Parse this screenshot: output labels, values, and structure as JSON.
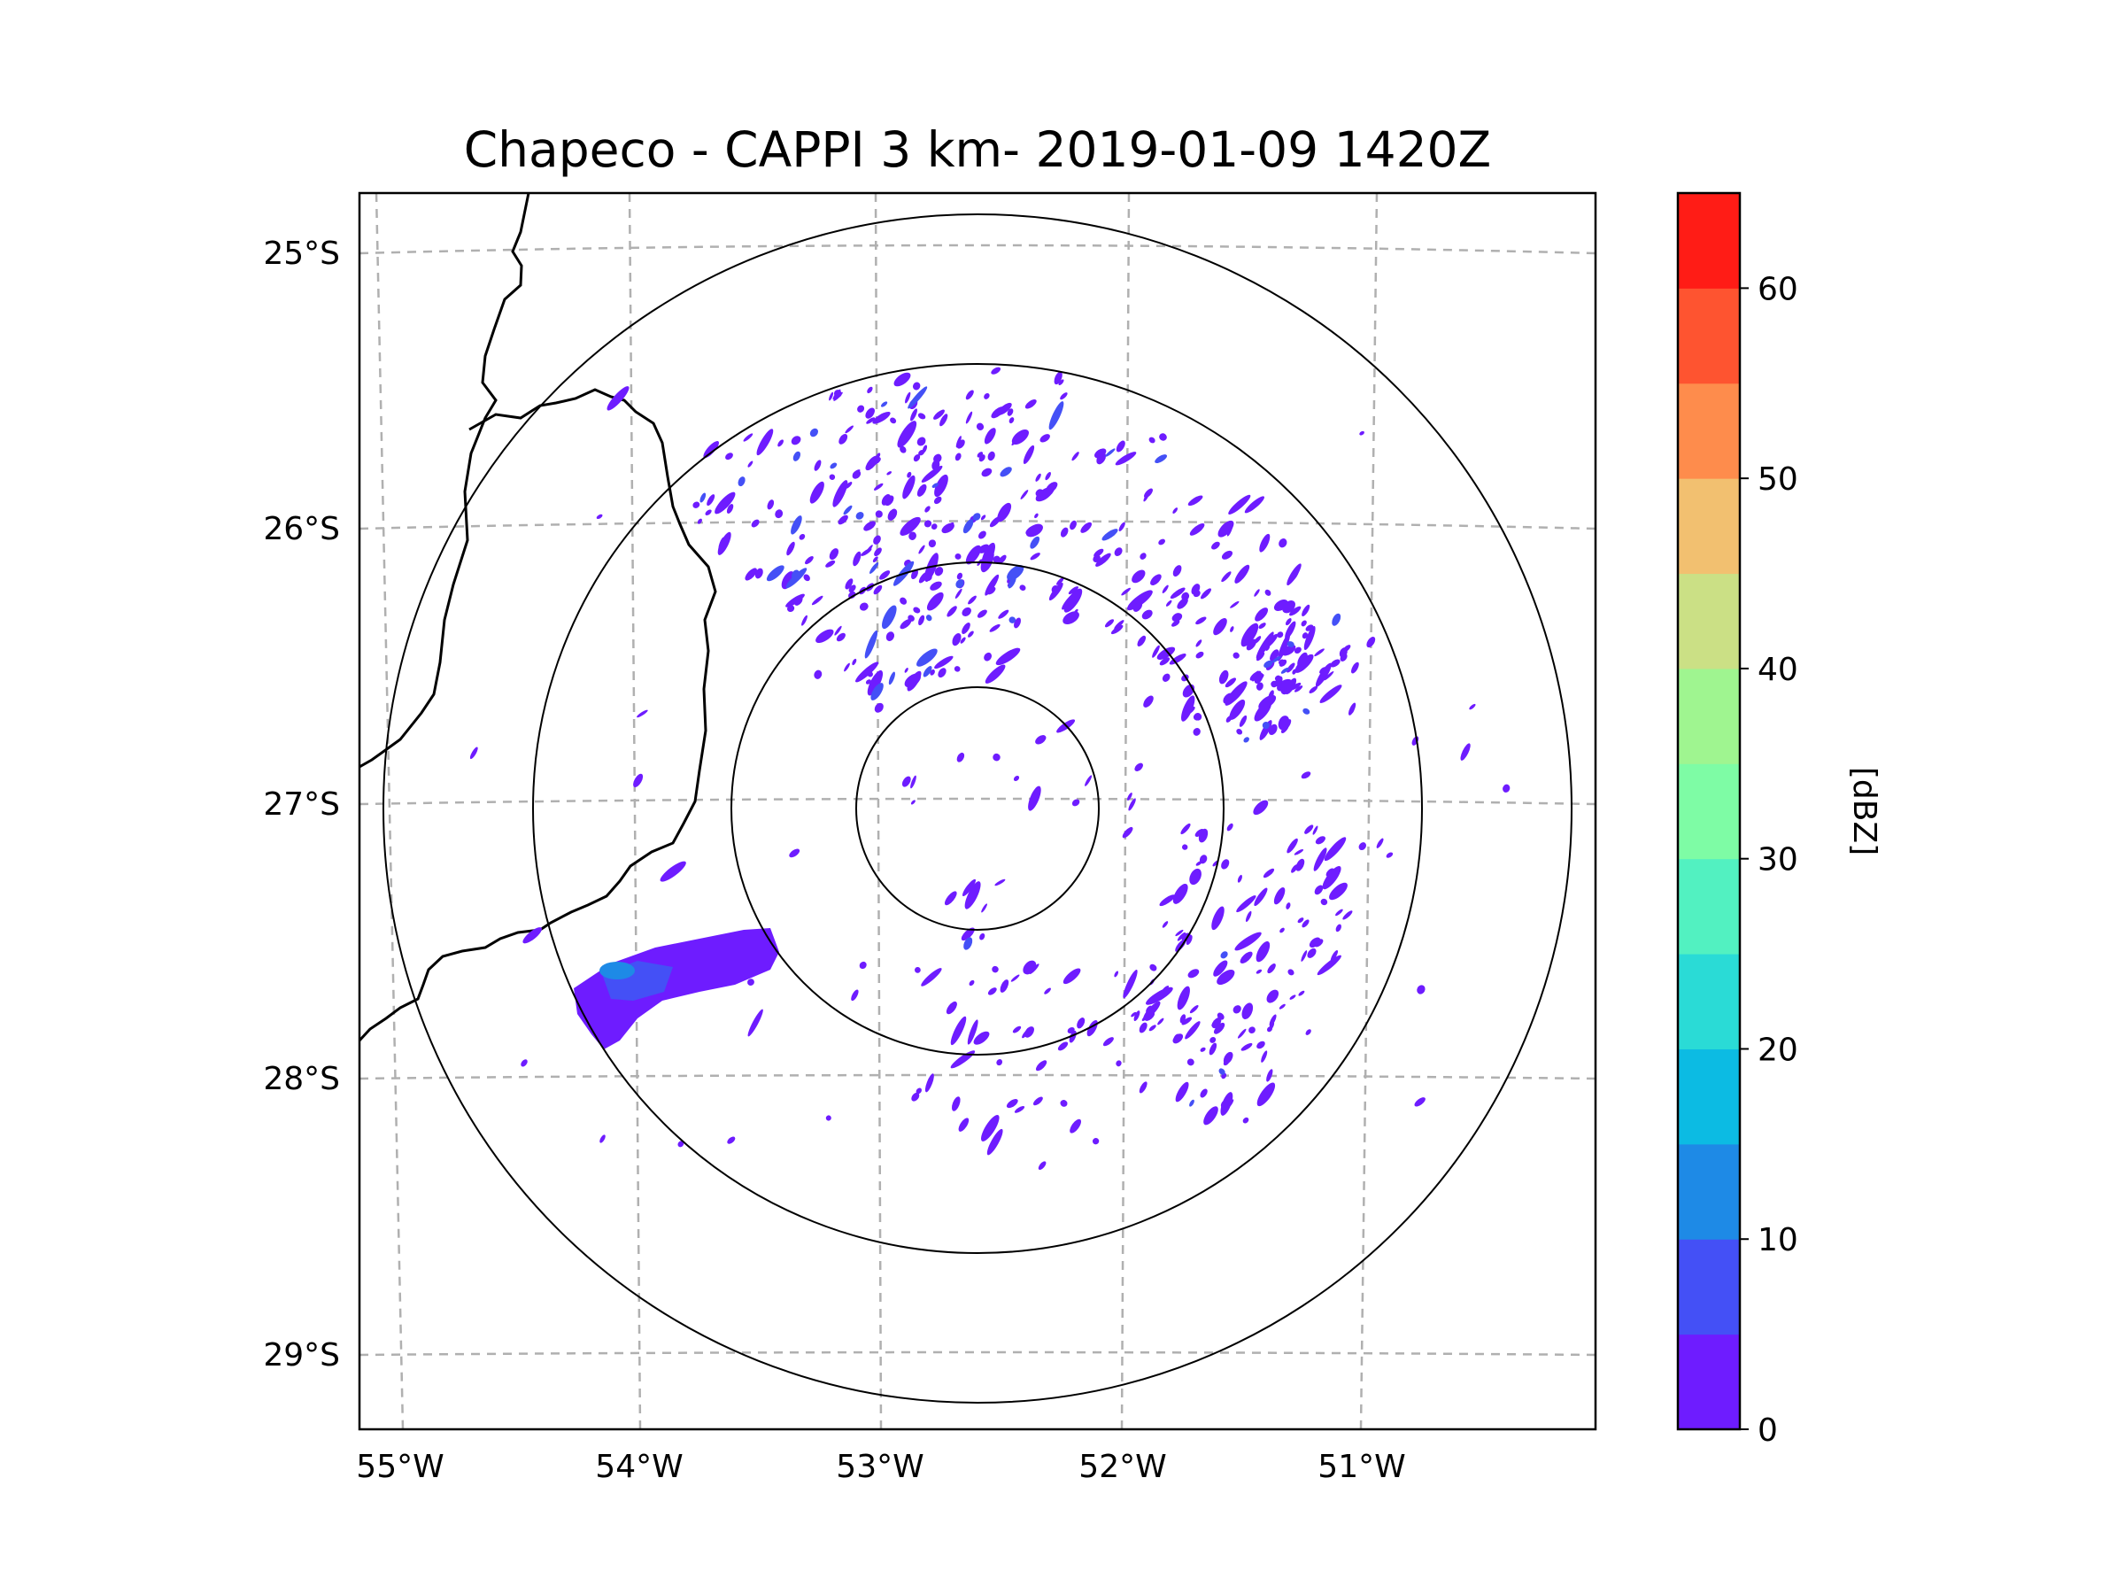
{
  "title": "Chapeco - CAPPI 3 km- 2019-01-09 1420Z",
  "map": {
    "lat_ticks": [
      "25°S",
      "26°S",
      "27°S",
      "28°S",
      "29°S"
    ],
    "lon_ticks": [
      "55°W",
      "54°W",
      "53°W",
      "52°W",
      "51°W"
    ],
    "range_rings": 4,
    "gridlines": "dashed grey",
    "border_color": "#000000"
  },
  "colorbar": {
    "label": "[dBZ]",
    "ticks": [
      "0",
      "10",
      "20",
      "30",
      "40",
      "50",
      "60"
    ],
    "min": 0,
    "max": 65,
    "step": 5,
    "colors": [
      "#6e1cff",
      "#4450f6",
      "#1e8ae6",
      "#0cbbe3",
      "#2adbd6",
      "#52f1c1",
      "#7efca5",
      "#9ff590",
      "#cbe085",
      "#f2c070",
      "#fe8c4c",
      "#fe5430",
      "#ff1c16"
    ]
  },
  "echo_colors": {
    "weak": "#6e1cff",
    "moderate": "#4450f6",
    "strong": "#1e8ae6"
  }
}
